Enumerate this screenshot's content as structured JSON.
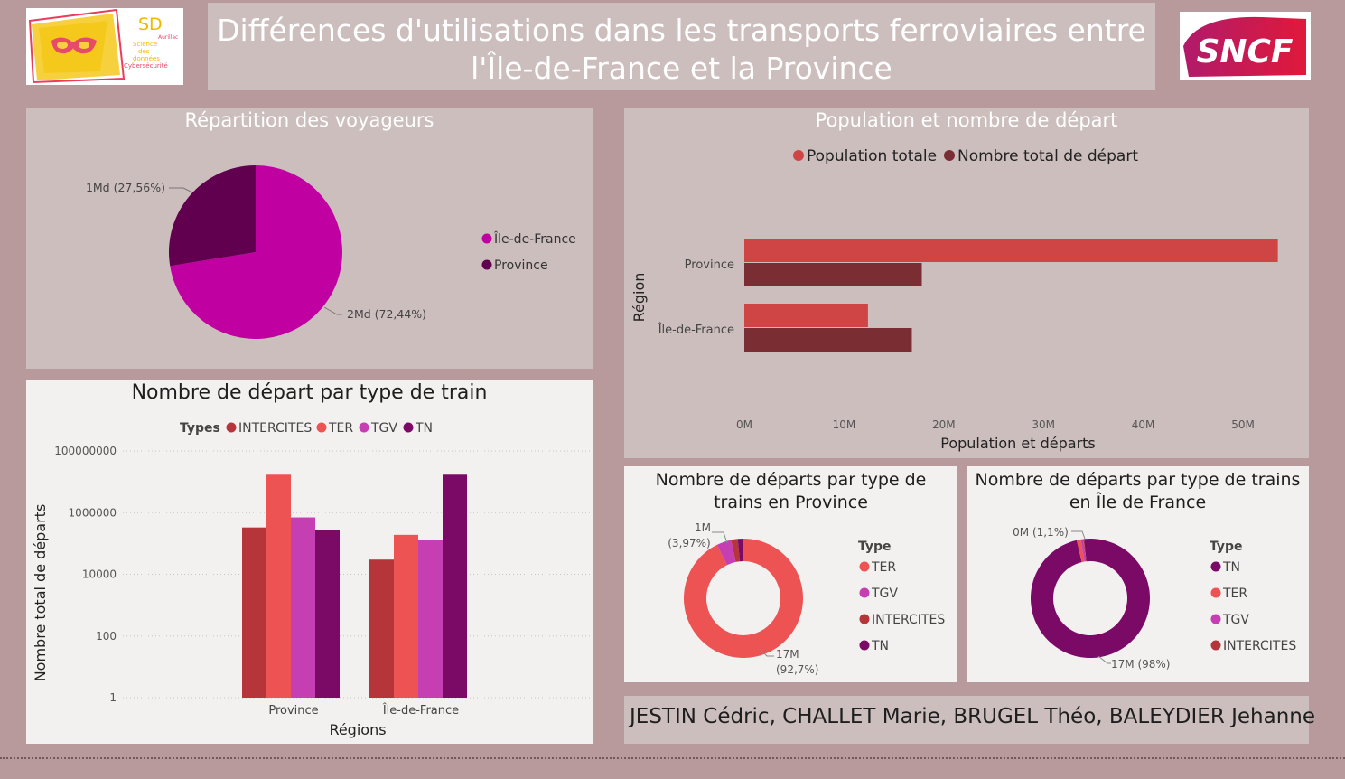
{
  "header": {
    "title_line1": "Différences d'utilisations dans les transports ferroviaires entre",
    "title_line2": "l'Île-de-France et la Province"
  },
  "logos": {
    "sd_text": "SD",
    "sd_sub": [
      "Aurillac",
      "Science",
      "des",
      "données",
      "Cybersécurité"
    ],
    "sncf_text": "SNCF"
  },
  "colors": {
    "idf": "#c000a0",
    "province": "#620050",
    "population": "#cf4444",
    "departs": "#7a2e33",
    "intercites": "#b5353a",
    "ter": "#ec5352",
    "tgv": "#c53fb3",
    "tn": "#7a0a66"
  },
  "chart_data": [
    {
      "id": "repartition",
      "type": "pie",
      "title": "Répartition des voyageurs",
      "legend": [
        "Île-de-France",
        "Province"
      ],
      "slices": [
        {
          "name": "Île-de-France",
          "share": 72.44,
          "label": "2Md (72,44%)"
        },
        {
          "name": "Province",
          "share": 27.56,
          "label": "1Md (27,56%)"
        }
      ]
    },
    {
      "id": "population",
      "type": "bar",
      "orientation": "horizontal",
      "title": "Population et nombre de départ",
      "xlabel": "Population et départs",
      "ylabel": "Région",
      "categories": [
        "Province",
        "Île-de-France"
      ],
      "series": [
        {
          "name": "Population totale",
          "values": [
            53.5,
            12.4
          ]
        },
        {
          "name": "Nombre total de départ",
          "values": [
            17.8,
            16.8
          ]
        }
      ],
      "xlim": [
        0,
        55
      ],
      "xticks": [
        0,
        10,
        20,
        30,
        40,
        50
      ],
      "xtick_labels": [
        "0M",
        "10M",
        "20M",
        "30M",
        "40M",
        "50M"
      ]
    },
    {
      "id": "par_type",
      "type": "bar",
      "title": "Nombre de départ par type de train",
      "legend_title": "Types",
      "xlabel": "Régions",
      "ylabel": "Nombre total de départs",
      "yscale": "log",
      "ylim": [
        1,
        100000000
      ],
      "yticks": [
        1,
        100,
        10000,
        1000000,
        100000000
      ],
      "ytick_labels": [
        "1",
        "100",
        "10000",
        "1000000",
        "100000000"
      ],
      "categories": [
        "Province",
        "Île-de-France"
      ],
      "series": [
        {
          "name": "INTERCITES",
          "values": [
            330000,
            30000
          ]
        },
        {
          "name": "TER",
          "values": [
            17000000,
            190000
          ]
        },
        {
          "name": "TGV",
          "values": [
            700000,
            130000
          ]
        },
        {
          "name": "TN",
          "values": [
            270000,
            17000000
          ]
        }
      ]
    },
    {
      "id": "donut_province",
      "type": "pie",
      "subtype": "donut",
      "title_line1": "Nombre de départs par type de",
      "title_line2": "trains en Province",
      "legend_title": "Type",
      "legend": [
        "TER",
        "TGV",
        "INTERCITES",
        "TN"
      ],
      "slices": [
        {
          "name": "TER",
          "share": 92.7
        },
        {
          "name": "TGV",
          "share": 3.97
        },
        {
          "name": "INTERCITES",
          "share": 1.8
        },
        {
          "name": "TN",
          "share": 1.53
        }
      ],
      "labels": [
        {
          "line1": "1M",
          "line2": "(3,97%)"
        },
        {
          "line1": "17M",
          "line2": "(92,7%)"
        }
      ]
    },
    {
      "id": "donut_idf",
      "type": "pie",
      "subtype": "donut",
      "title_line1": "Nombre de départs par type de trains",
      "title_line2": "en Île de France",
      "legend_title": "Type",
      "legend": [
        "TN",
        "TER",
        "TGV",
        "INTERCITES"
      ],
      "slices": [
        {
          "name": "TN",
          "share": 98.0
        },
        {
          "name": "TER",
          "share": 1.1
        },
        {
          "name": "TGV",
          "share": 0.7
        },
        {
          "name": "INTERCITES",
          "share": 0.2
        }
      ],
      "labels": [
        {
          "text": "0M (1,1%)"
        },
        {
          "text": "17M (98%)"
        }
      ]
    }
  ],
  "authors": "JESTIN Cédric, CHALLET Marie, BRUGEL Théo, BALEYDIER Jehanne"
}
